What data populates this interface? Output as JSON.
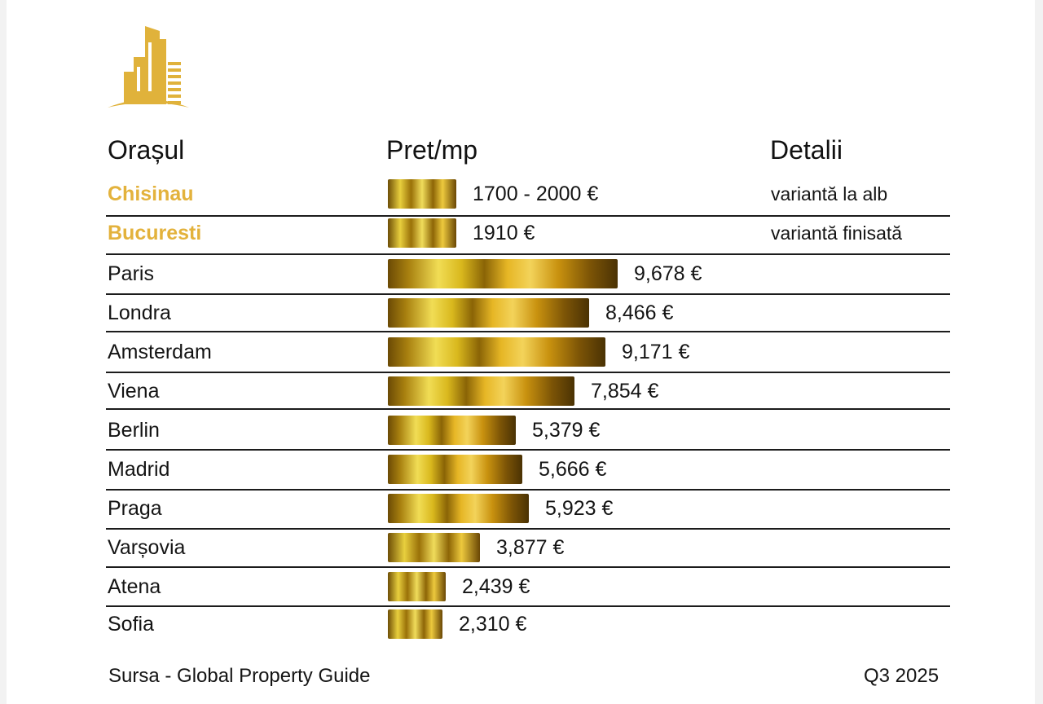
{
  "header": {
    "city": "Orașul",
    "price": "Pret/mp",
    "details": "Detalii"
  },
  "colors": {
    "gold_text": "#e3b23c",
    "logo_gold": "#e0b23b",
    "separator": "#1c1c1c"
  },
  "chart_data": {
    "type": "bar",
    "title": "",
    "xlabel": "Pret/mp",
    "ylabel": "Orașul",
    "xlim": [
      0,
      10000
    ],
    "unit": "€",
    "rows": [
      {
        "city": "Chisinau",
        "price_label": "1700 - 2000 €",
        "value": 1850,
        "detail": "variantă la alb",
        "highlight": true
      },
      {
        "city": "Bucuresti",
        "price_label": "1910 €",
        "value": 1910,
        "detail": "variantă finisată",
        "highlight": true
      },
      {
        "city": "Paris",
        "price_label": "9,678 €",
        "value": 9678,
        "detail": "",
        "highlight": false
      },
      {
        "city": "Londra",
        "price_label": "8,466 €",
        "value": 8466,
        "detail": "",
        "highlight": false
      },
      {
        "city": "Amsterdam",
        "price_label": "9,171 €",
        "value": 9171,
        "detail": "",
        "highlight": false
      },
      {
        "city": "Viena",
        "price_label": "7,854 €",
        "value": 7854,
        "detail": "",
        "highlight": false
      },
      {
        "city": "Berlin",
        "price_label": "5,379 €",
        "value": 5379,
        "detail": "",
        "highlight": false
      },
      {
        "city": "Madrid",
        "price_label": "5,666 €",
        "value": 5666,
        "detail": "",
        "highlight": false
      },
      {
        "city": "Praga",
        "price_label": "5,923 €",
        "value": 5923,
        "detail": "",
        "highlight": false
      },
      {
        "city": "Varșovia",
        "price_label": "3,877 €",
        "value": 3877,
        "detail": "",
        "highlight": false
      },
      {
        "city": "Atena",
        "price_label": "2,439 €",
        "value": 2439,
        "detail": "",
        "highlight": false
      },
      {
        "city": "Sofia",
        "price_label": "2,310 €",
        "value": 2310,
        "detail": "",
        "highlight": false
      }
    ]
  },
  "footer": {
    "source": "Sursa - Global Property Guide",
    "period": "Q3 2025"
  }
}
